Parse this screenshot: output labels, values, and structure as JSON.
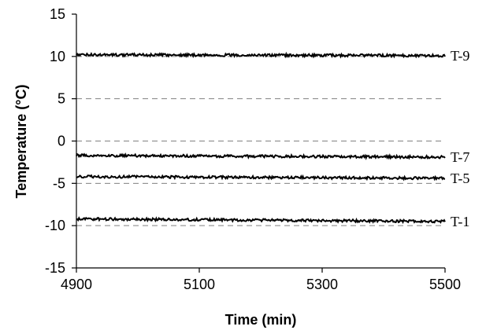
{
  "chart_data": {
    "type": "line",
    "title": "",
    "xlabel": "Time (min)",
    "ylabel": "Temperature (°C)",
    "xlim": [
      4900,
      5500
    ],
    "ylim": [
      -15,
      15
    ],
    "x_ticks": [
      4900,
      5100,
      5300,
      5500
    ],
    "x_tick_labels": [
      "4900",
      "5100",
      "5300",
      "5500"
    ],
    "y_ticks": [
      -15,
      -10,
      -5,
      0,
      5,
      10,
      15
    ],
    "y_tick_labels": [
      "-15",
      "-10",
      "-5",
      "0",
      "5",
      "10",
      "15"
    ],
    "gridlines": {
      "horizontal": true,
      "style": "dashed"
    },
    "legend": "none; series labeled at right end of each line",
    "series": [
      {
        "name": "T-9",
        "x": [
          4900,
          5500
        ],
        "values": [
          10.2,
          10.1
        ]
      },
      {
        "name": "T-7",
        "x": [
          4900,
          5500
        ],
        "values": [
          -1.7,
          -1.9
        ]
      },
      {
        "name": "T-5",
        "x": [
          4900,
          5500
        ],
        "values": [
          -4.2,
          -4.4
        ]
      },
      {
        "name": "T-1",
        "x": [
          4900,
          5500
        ],
        "values": [
          -9.2,
          -9.5
        ]
      }
    ]
  }
}
